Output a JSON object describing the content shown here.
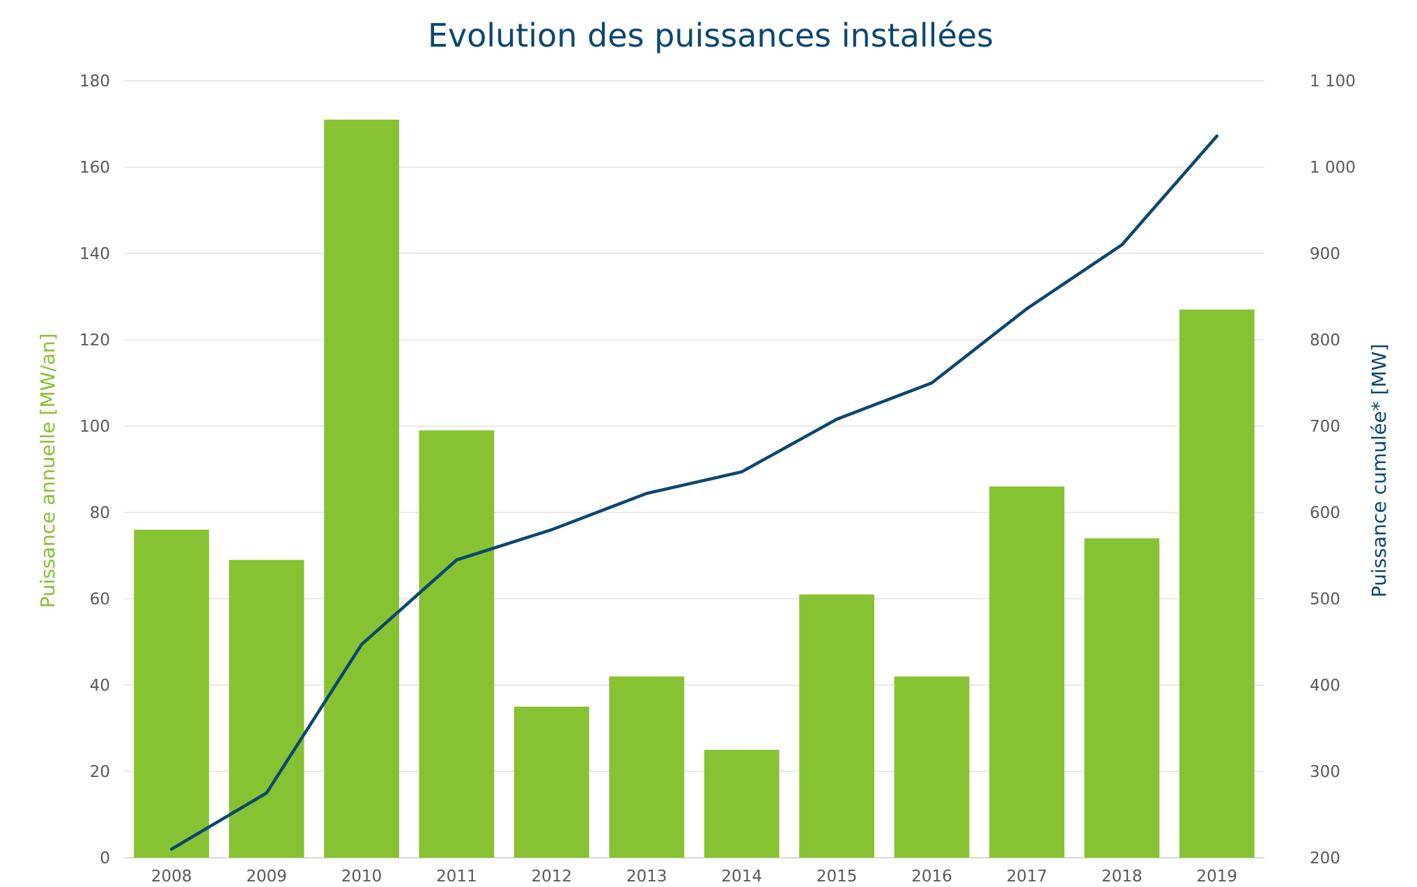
{
  "chart_data": {
    "type": "bar",
    "title": "Evolution des puissances installées",
    "categories": [
      "2008",
      "2009",
      "2010",
      "2011",
      "2012",
      "2013",
      "2014",
      "2015",
      "2016",
      "2017",
      "2018",
      "2019"
    ],
    "series": [
      {
        "type": "bar",
        "axis": "left",
        "values": [
          76,
          69,
          171,
          99,
          35,
          42,
          25,
          61,
          42,
          86,
          74,
          127
        ],
        "color": "#86c232"
      },
      {
        "type": "line",
        "axis": "right",
        "values": [
          210,
          275,
          447,
          545,
          580,
          622,
          647,
          708,
          750,
          836,
          910,
          1036
        ],
        "color": "#0b4770"
      }
    ],
    "y_left": {
      "label": "Puissance annuelle [MW/an]",
      "min": 0,
      "max": 180,
      "step": 20,
      "tick_labels": [
        "0",
        "20",
        "40",
        "60",
        "80",
        "100",
        "120",
        "140",
        "160",
        "180"
      ]
    },
    "y_right": {
      "label": "Puissance cumulée* [MW]",
      "min": 200,
      "max": 1100,
      "step": 100,
      "tick_labels": [
        "200",
        "300",
        "400",
        "500",
        "600",
        "700",
        "800",
        "900",
        "1 000",
        "1 100"
      ]
    },
    "grid": true,
    "legend": "none"
  }
}
